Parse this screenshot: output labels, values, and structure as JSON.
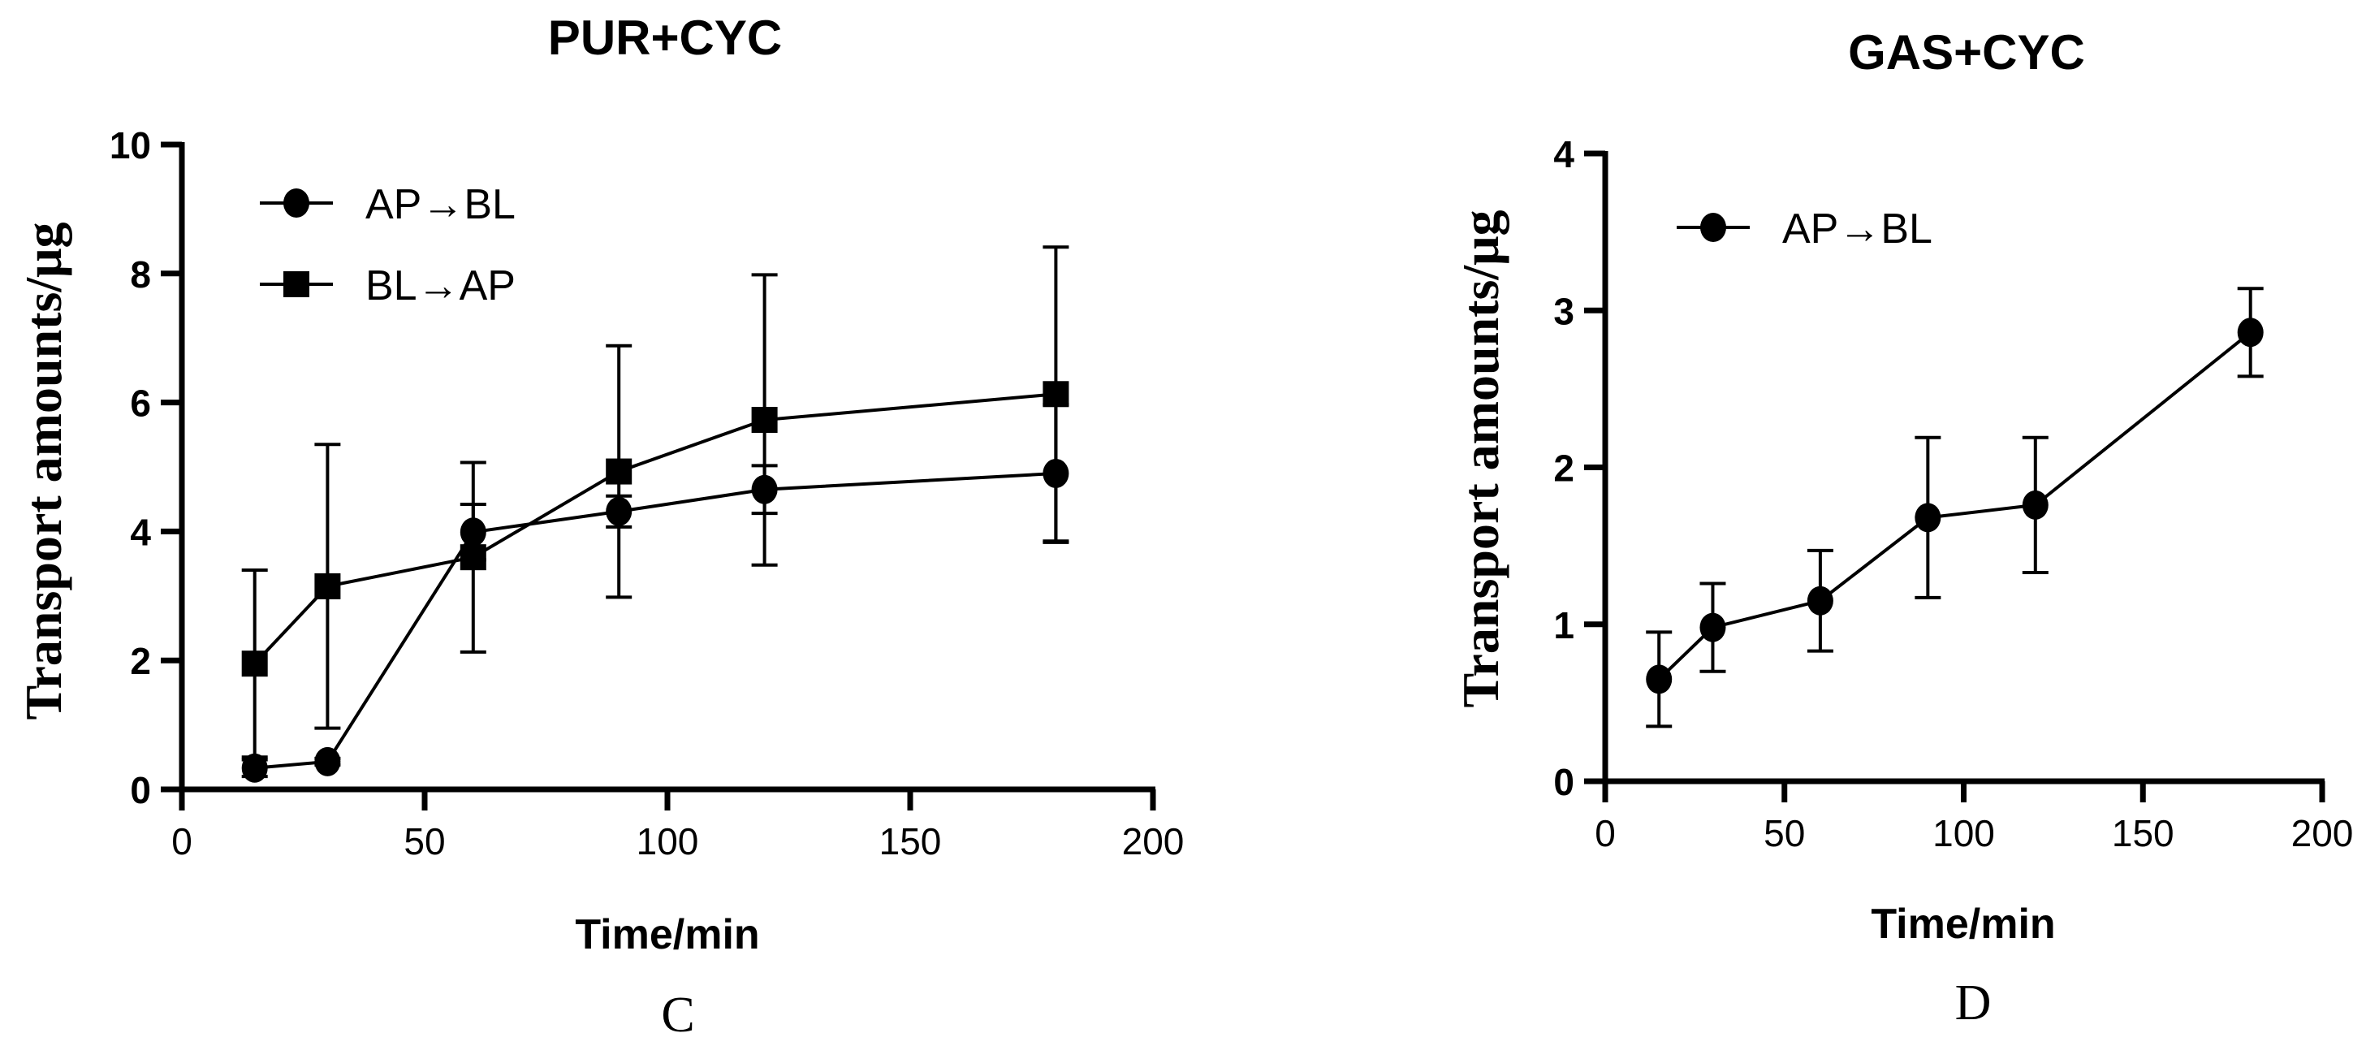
{
  "chart_data": [
    {
      "type": "line",
      "panel": "C",
      "title": "PUR+CYC",
      "xlabel": "Time/min",
      "ylabel": "Transport amounts/μg",
      "xlim": [
        0,
        200
      ],
      "ylim": [
        0,
        10
      ],
      "xticks": [
        "0",
        "50",
        "100",
        "150",
        "200"
      ],
      "yticks": [
        "0",
        "2",
        "4",
        "6",
        "8",
        "10"
      ],
      "legend_position": "top-left",
      "x": [
        15,
        30,
        60,
        90,
        120,
        180
      ],
      "series": [
        {
          "name": "AP→BL",
          "marker": "circle",
          "values": [
            0.33,
            0.43,
            3.99,
            4.31,
            4.65,
            4.9
          ],
          "error": [
            0.13,
            0.05,
            0.43,
            0.24,
            0.37,
            1.07
          ]
        },
        {
          "name": "BL→AP",
          "marker": "square",
          "values": [
            1.95,
            3.15,
            3.6,
            4.93,
            5.73,
            6.13
          ],
          "error": [
            1.45,
            2.2,
            1.47,
            1.95,
            2.25,
            2.28
          ]
        }
      ]
    },
    {
      "type": "line",
      "panel": "D",
      "title": "GAS+CYC",
      "xlabel": "Time/min",
      "ylabel": "Transport amounts/μg",
      "xlim": [
        0,
        200
      ],
      "ylim": [
        0,
        4
      ],
      "xticks": [
        "0",
        "50",
        "100",
        "150",
        "200"
      ],
      "yticks": [
        "0",
        "1",
        "2",
        "3",
        "4"
      ],
      "legend_position": "top-left",
      "x": [
        15,
        30,
        60,
        90,
        120,
        180
      ],
      "series": [
        {
          "name": "AP→BL",
          "marker": "circle",
          "values": [
            0.65,
            0.98,
            1.15,
            1.68,
            1.76,
            2.86
          ],
          "error": [
            0.3,
            0.28,
            0.32,
            0.51,
            0.43,
            0.28
          ]
        }
      ]
    }
  ]
}
